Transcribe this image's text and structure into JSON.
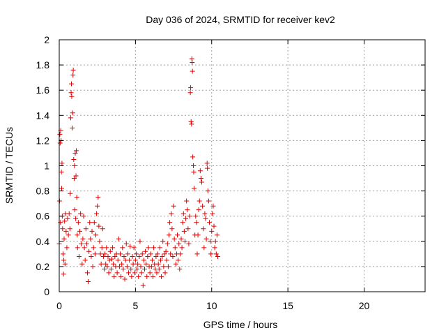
{
  "chart_data": {
    "type": "scatter",
    "title": "Day 036 of 2024, SRMTID for receiver kev2",
    "xlabel": "GPS time / hours",
    "ylabel": "SRMTID / TECUs",
    "xlim": [
      0,
      24
    ],
    "ylim": [
      0,
      2
    ],
    "xticks": [
      0,
      5,
      10,
      15,
      20
    ],
    "yticks": [
      0,
      0.2,
      0.4,
      0.6,
      0.8,
      1,
      1.2,
      1.4,
      1.6,
      1.8,
      2
    ],
    "xtick_labels": [
      "0",
      "5",
      "10",
      "15",
      "20"
    ],
    "ytick_labels": [
      "0",
      "0.2",
      "0.4",
      "0.6",
      "0.8",
      "1",
      "1.2",
      "1.4",
      "1.6",
      "1.8",
      "2"
    ],
    "grid": true,
    "marker": "+",
    "color": "#e00000",
    "series": [
      {
        "name": "kev2",
        "points": [
          [
            0.0,
            0.38
          ],
          [
            0.02,
            0.72
          ],
          [
            0.04,
            1.25
          ],
          [
            0.06,
            1.18
          ],
          [
            0.08,
            0.55
          ],
          [
            0.1,
            1.28
          ],
          [
            0.12,
            1.2
          ],
          [
            0.14,
            0.95
          ],
          [
            0.16,
            0.82
          ],
          [
            0.18,
            1.02
          ],
          [
            0.2,
            0.6
          ],
          [
            0.22,
            0.5
          ],
          [
            0.25,
            0.3
          ],
          [
            0.28,
            0.14
          ],
          [
            0.3,
            0.25
          ],
          [
            0.32,
            0.42
          ],
          [
            0.35,
            0.56
          ],
          [
            0.38,
            0.22
          ],
          [
            0.4,
            0.62
          ],
          [
            0.45,
            0.48
          ],
          [
            0.5,
            0.35
          ],
          [
            0.55,
            0.58
          ],
          [
            0.6,
            0.45
          ],
          [
            0.65,
            0.62
          ],
          [
            0.7,
            0.5
          ],
          [
            0.72,
            0.78
          ],
          [
            0.75,
            1.38
          ],
          [
            0.78,
            1.58
          ],
          [
            0.8,
            1.65
          ],
          [
            0.82,
            1.55
          ],
          [
            0.85,
            1.3
          ],
          [
            0.88,
            1.42
          ],
          [
            0.9,
            1.72
          ],
          [
            0.92,
            1.76
          ],
          [
            0.95,
            1.05
          ],
          [
            0.98,
            0.9
          ],
          [
            1.0,
            1.0
          ],
          [
            1.02,
            0.65
          ],
          [
            1.05,
            1.1
          ],
          [
            1.08,
            0.58
          ],
          [
            1.1,
            0.92
          ],
          [
            1.12,
            1.12
          ],
          [
            1.15,
            0.75
          ],
          [
            1.18,
            0.45
          ],
          [
            1.2,
            0.35
          ],
          [
            1.25,
            0.55
          ],
          [
            1.3,
            0.28
          ],
          [
            1.35,
            0.48
          ],
          [
            1.4,
            0.62
          ],
          [
            1.45,
            0.38
          ],
          [
            1.5,
            0.22
          ],
          [
            1.55,
            0.42
          ],
          [
            1.6,
            0.6
          ],
          [
            1.65,
            0.35
          ],
          [
            1.7,
            0.25
          ],
          [
            1.75,
            0.5
          ],
          [
            1.8,
            0.38
          ],
          [
            1.85,
            0.15
          ],
          [
            1.9,
            0.08
          ],
          [
            1.95,
            0.32
          ],
          [
            2.0,
            0.55
          ],
          [
            2.05,
            0.42
          ],
          [
            2.1,
            0.28
          ],
          [
            2.15,
            0.48
          ],
          [
            2.2,
            0.2
          ],
          [
            2.25,
            0.35
          ],
          [
            2.3,
            0.55
          ],
          [
            2.35,
            0.3
          ],
          [
            2.4,
            0.45
          ],
          [
            2.45,
            0.62
          ],
          [
            2.5,
            0.68
          ],
          [
            2.55,
            0.75
          ],
          [
            2.6,
            0.52
          ],
          [
            2.65,
            0.4
          ],
          [
            2.7,
            0.3
          ],
          [
            2.75,
            0.22
          ],
          [
            2.8,
            0.35
          ],
          [
            2.85,
            0.5
          ],
          [
            2.9,
            0.28
          ],
          [
            2.95,
            0.18
          ],
          [
            3.0,
            0.3
          ],
          [
            3.05,
            0.22
          ],
          [
            3.1,
            0.35
          ],
          [
            3.15,
            0.2
          ],
          [
            3.2,
            0.28
          ],
          [
            3.25,
            0.15
          ],
          [
            3.3,
            0.25
          ],
          [
            3.35,
            0.32
          ],
          [
            3.4,
            0.18
          ],
          [
            3.45,
            0.26
          ],
          [
            3.5,
            0.35
          ],
          [
            3.55,
            0.22
          ],
          [
            3.6,
            0.12
          ],
          [
            3.65,
            0.28
          ],
          [
            3.7,
            0.2
          ],
          [
            3.75,
            0.3
          ],
          [
            3.8,
            0.15
          ],
          [
            3.85,
            0.25
          ],
          [
            3.9,
            0.42
          ],
          [
            3.95,
            0.2
          ],
          [
            4.0,
            0.3
          ],
          [
            4.05,
            0.12
          ],
          [
            4.1,
            0.22
          ],
          [
            4.15,
            0.35
          ],
          [
            4.2,
            0.18
          ],
          [
            4.25,
            0.28
          ],
          [
            4.3,
            0.1
          ],
          [
            4.35,
            0.25
          ],
          [
            4.4,
            0.38
          ],
          [
            4.45,
            0.2
          ],
          [
            4.5,
            0.3
          ],
          [
            4.55,
            0.15
          ],
          [
            4.6,
            0.25
          ],
          [
            4.65,
            0.36
          ],
          [
            4.7,
            0.18
          ],
          [
            4.75,
            0.12
          ],
          [
            4.8,
            0.28
          ],
          [
            4.85,
            0.22
          ],
          [
            4.9,
            0.35
          ],
          [
            4.95,
            0.15
          ],
          [
            5.0,
            0.25
          ],
          [
            5.05,
            0.3
          ],
          [
            5.1,
            0.18
          ],
          [
            5.15,
            0.22
          ],
          [
            5.2,
            0.12
          ],
          [
            5.25,
            0.28
          ],
          [
            5.3,
            0.4
          ],
          [
            5.35,
            0.2
          ],
          [
            5.4,
            0.15
          ],
          [
            5.45,
            0.3
          ],
          [
            5.5,
            0.05
          ],
          [
            5.55,
            0.25
          ],
          [
            5.6,
            0.18
          ],
          [
            5.65,
            0.32
          ],
          [
            5.7,
            0.22
          ],
          [
            5.75,
            0.12
          ],
          [
            5.8,
            0.28
          ],
          [
            5.85,
            0.35
          ],
          [
            5.9,
            0.2
          ],
          [
            5.95,
            0.15
          ],
          [
            6.0,
            0.3
          ],
          [
            6.05,
            0.2
          ],
          [
            6.1,
            0.25
          ],
          [
            6.15,
            0.12
          ],
          [
            6.2,
            0.35
          ],
          [
            6.25,
            0.22
          ],
          [
            6.3,
            0.18
          ],
          [
            6.35,
            0.28
          ],
          [
            6.4,
            0.15
          ],
          [
            6.45,
            0.3
          ],
          [
            6.5,
            0.22
          ],
          [
            6.55,
            0.18
          ],
          [
            6.6,
            0.35
          ],
          [
            6.65,
            0.25
          ],
          [
            6.7,
            0.12
          ],
          [
            6.75,
            0.28
          ],
          [
            6.8,
            0.4
          ],
          [
            6.85,
            0.2
          ],
          [
            6.9,
            0.3
          ],
          [
            6.95,
            0.15
          ],
          [
            7.0,
            0.32
          ],
          [
            7.05,
            0.25
          ],
          [
            7.1,
            0.38
          ],
          [
            7.15,
            0.2
          ],
          [
            7.2,
            0.45
          ],
          [
            7.25,
            0.55
          ],
          [
            7.3,
            0.3
          ],
          [
            7.35,
            0.62
          ],
          [
            7.4,
            0.5
          ],
          [
            7.45,
            0.28
          ],
          [
            7.5,
            0.68
          ],
          [
            7.55,
            0.42
          ],
          [
            7.6,
            0.35
          ],
          [
            7.65,
            0.22
          ],
          [
            7.7,
            0.3
          ],
          [
            7.75,
            0.45
          ],
          [
            7.8,
            0.25
          ],
          [
            7.85,
            0.38
          ],
          [
            7.9,
            0.18
          ],
          [
            7.95,
            0.3
          ],
          [
            8.0,
            0.42
          ],
          [
            8.05,
            0.35
          ],
          [
            8.1,
            0.55
          ],
          [
            8.15,
            0.62
          ],
          [
            8.2,
            0.48
          ],
          [
            8.25,
            0.4
          ],
          [
            8.3,
            0.58
          ],
          [
            8.35,
            0.72
          ],
          [
            8.4,
            0.65
          ],
          [
            8.45,
            0.5
          ],
          [
            8.5,
            0.38
          ],
          [
            8.55,
            0.6
          ],
          [
            8.6,
            1.58
          ],
          [
            8.62,
            1.62
          ],
          [
            8.65,
            1.35
          ],
          [
            8.68,
            1.33
          ],
          [
            8.7,
            1.85
          ],
          [
            8.72,
            1.82
          ],
          [
            8.74,
            1.75
          ],
          [
            8.76,
            1.07
          ],
          [
            8.8,
            1.0
          ],
          [
            8.82,
            0.95
          ],
          [
            8.85,
            0.82
          ],
          [
            8.9,
            0.45
          ],
          [
            8.95,
            0.6
          ],
          [
            9.0,
            0.55
          ],
          [
            9.05,
            0.3
          ],
          [
            9.1,
            0.45
          ],
          [
            9.15,
            0.65
          ],
          [
            9.2,
            0.72
          ],
          [
            9.25,
            0.96
          ],
          [
            9.3,
            0.9
          ],
          [
            9.35,
            0.87
          ],
          [
            9.4,
            0.68
          ],
          [
            9.45,
            0.5
          ],
          [
            9.5,
            0.35
          ],
          [
            9.55,
            0.62
          ],
          [
            9.6,
            0.58
          ],
          [
            9.65,
            0.42
          ],
          [
            9.7,
            1.02
          ],
          [
            9.72,
            0.98
          ],
          [
            9.75,
            0.8
          ],
          [
            9.8,
            0.72
          ],
          [
            9.85,
            0.55
          ],
          [
            9.9,
            0.4
          ],
          [
            9.95,
            0.3
          ],
          [
            10.0,
            0.48
          ],
          [
            10.05,
            0.62
          ],
          [
            10.1,
            0.68
          ],
          [
            10.15,
            0.52
          ],
          [
            10.2,
            0.35
          ],
          [
            10.25,
            0.4
          ],
          [
            10.3,
            0.3
          ],
          [
            10.35,
            0.45
          ],
          [
            10.4,
            0.28
          ]
        ]
      }
    ]
  }
}
